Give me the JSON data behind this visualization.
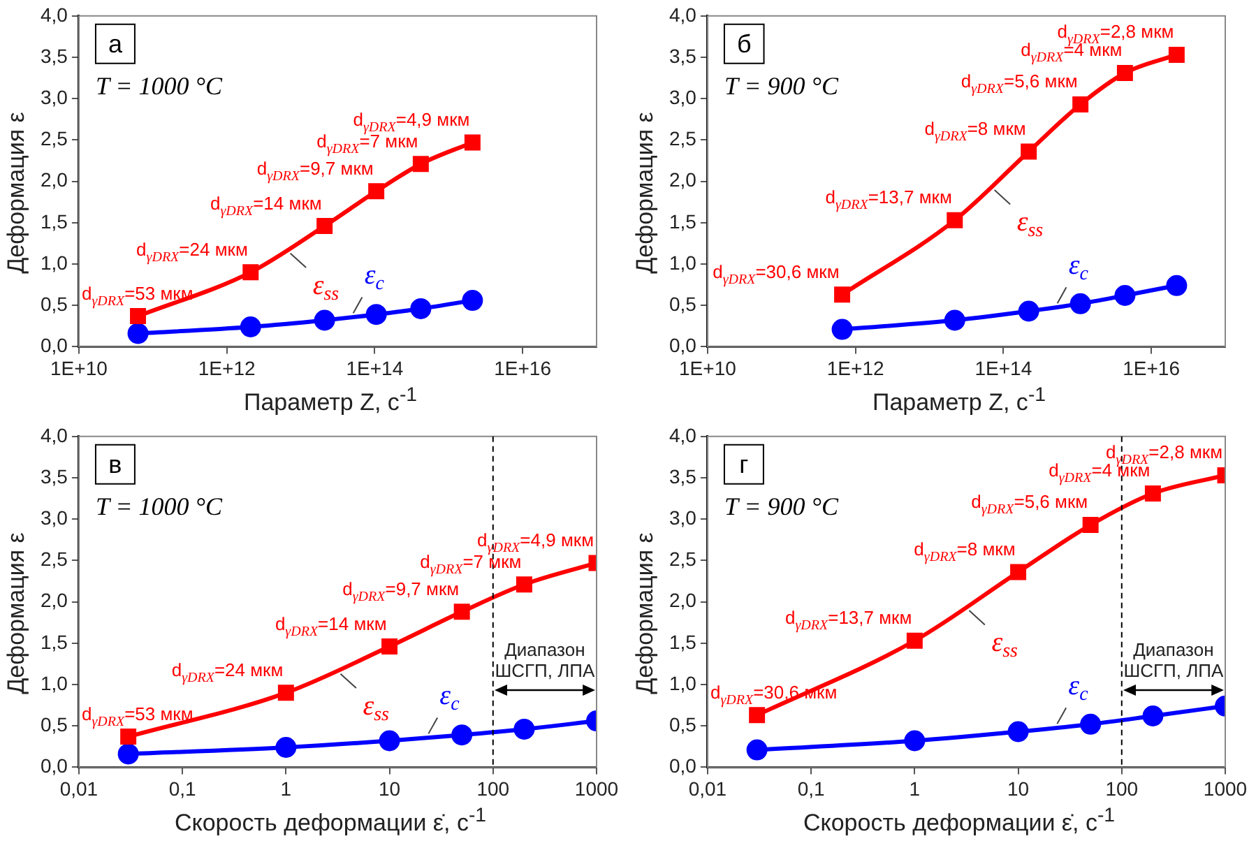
{
  "chart_data": [
    {
      "type": "line",
      "xlabel": "Параметр Z, с$^{-1}$",
      "ylabel": "Деформация ε",
      "log": "x",
      "grid": false,
      "legend": false,
      "xlim": [
        10000000000.0,
        1e+17
      ],
      "xticks": [
        {
          "value": 10000000000.0,
          "label": "1E+10"
        },
        {
          "value": 1000000000000.0,
          "label": "1E+12"
        },
        {
          "value": 100000000000000.0,
          "label": "1E+14"
        },
        {
          "value": 1e+16,
          "label": "1E+16"
        }
      ],
      "ylim": [
        0,
        4
      ],
      "yticks": [
        {
          "value": 0,
          "label": "0,0"
        },
        {
          "value": 0.5,
          "label": "0,5"
        },
        {
          "value": 1,
          "label": "1,0"
        },
        {
          "value": 1.5,
          "label": "1,5"
        },
        {
          "value": 2,
          "label": "2,0"
        },
        {
          "value": 2.5,
          "label": "2,5"
        },
        {
          "value": 3,
          "label": "3,0"
        },
        {
          "value": 3.5,
          "label": "3,5"
        },
        {
          "value": 4,
          "label": "4,0"
        }
      ],
      "x": [
        63000000000.0,
        2100000000000.0,
        21000000000000.0,
        105000000000000.0,
        420000000000000.0,
        2100000000000000.0
      ],
      "series": [
        {
          "name": "ε$_{ss}$",
          "color": "#ff0000",
          "marker": "square",
          "values": [
            0.37,
            0.9,
            1.46,
            1.88,
            2.21,
            2.47
          ]
        },
        {
          "name": "ε$_{c}$",
          "color": "#0000ff",
          "marker": "circle",
          "values": [
            0.16,
            0.24,
            0.32,
            0.39,
            0.46,
            0.56
          ]
        }
      ],
      "annotations": [
        "а",
        "T = 1000 °C",
        {
          "text": "d$_{γDRX}$=53 мкм",
          "x": 63000000000.0,
          "y": 0.37
        },
        {
          "text": "d$_{γDRX}$=24 мкм",
          "x": 2100000000000.0,
          "y": 0.9
        },
        {
          "text": "d$_{γDRX}$=14 мкм",
          "x": 21000000000000.0,
          "y": 1.46
        },
        {
          "text": "d$_{γDRX}$=9,7 мкм",
          "x": 105000000000000.0,
          "y": 1.88
        },
        {
          "text": "d$_{γDRX}$=7 мкм",
          "x": 420000000000000.0,
          "y": 2.21
        },
        {
          "text": "d$_{γDRX}$=4,9 мкм",
          "x": 2100000000000000.0,
          "y": 2.47
        }
      ]
    },
    {
      "type": "line",
      "xlabel": "Параметр Z, с$^{-1}$",
      "ylabel": "Деформация ε",
      "log": "x",
      "grid": false,
      "legend": false,
      "xlim": [
        10000000000.0,
        1e+17
      ],
      "xticks": [
        {
          "value": 10000000000.0,
          "label": "1E+10"
        },
        {
          "value": 1000000000000.0,
          "label": "1E+12"
        },
        {
          "value": 100000000000000.0,
          "label": "1E+14"
        },
        {
          "value": 1e+16,
          "label": "1E+16"
        }
      ],
      "ylim": [
        0,
        4
      ],
      "yticks": [
        {
          "value": 0,
          "label": "0,0"
        },
        {
          "value": 0.5,
          "label": "0,5"
        },
        {
          "value": 1,
          "label": "1,0"
        },
        {
          "value": 1.5,
          "label": "1,5"
        },
        {
          "value": 2,
          "label": "2,0"
        },
        {
          "value": 2.5,
          "label": "2,5"
        },
        {
          "value": 3,
          "label": "3,0"
        },
        {
          "value": 3.5,
          "label": "3,5"
        },
        {
          "value": 4,
          "label": "4,0"
        }
      ],
      "x": [
        660000000000.0,
        22000000000000.0,
        220000000000000.0,
        1100000000000000.0,
        4400000000000000.0,
        2.2e+16
      ],
      "series": [
        {
          "name": "ε$_{ss}$",
          "color": "#ff0000",
          "marker": "square",
          "values": [
            0.63,
            1.53,
            2.36,
            2.93,
            3.31,
            3.53
          ]
        },
        {
          "name": "ε$_{c}$",
          "color": "#0000ff",
          "marker": "circle",
          "values": [
            0.21,
            0.32,
            0.43,
            0.52,
            0.62,
            0.74
          ]
        }
      ],
      "annotations": [
        "б",
        "T = 900 °C",
        {
          "text": "d$_{γDRX}$=30,6 мкм",
          "x": 660000000000.0,
          "y": 0.63
        },
        {
          "text": "d$_{γDRX}$=13,7 мкм",
          "x": 22000000000000.0,
          "y": 1.53
        },
        {
          "text": "d$_{γDRX}$=8 мкм",
          "x": 220000000000000.0,
          "y": 2.36
        },
        {
          "text": "d$_{γDRX}$=5,6 мкм",
          "x": 1100000000000000.0,
          "y": 2.93
        },
        {
          "text": "d$_{γDRX}$=4 мкм",
          "x": 4400000000000000.0,
          "y": 3.31
        },
        {
          "text": "d$_{γDRX}$=2,8 мкм",
          "x": 2.2e+16,
          "y": 3.53
        }
      ]
    },
    {
      "type": "line",
      "xlabel": "Скорость деформации ε̇, с$^{-1}$",
      "ylabel": "Деформация ε",
      "log": "x",
      "grid": false,
      "legend": false,
      "xlim": [
        0.01,
        1000
      ],
      "xticks": [
        {
          "value": 0.01,
          "label": "0,01"
        },
        {
          "value": 0.1,
          "label": "0,1"
        },
        1,
        10,
        100,
        1000
      ],
      "ylim": [
        0,
        4
      ],
      "yticks": [
        {
          "value": 0,
          "label": "0,0"
        },
        {
          "value": 0.5,
          "label": "0,5"
        },
        {
          "value": 1,
          "label": "1,0"
        },
        {
          "value": 1.5,
          "label": "1,5"
        },
        {
          "value": 2,
          "label": "2,0"
        },
        {
          "value": 2.5,
          "label": "2,5"
        },
        {
          "value": 3,
          "label": "3,0"
        },
        {
          "value": 3.5,
          "label": "3,5"
        },
        {
          "value": 4,
          "label": "4,0"
        }
      ],
      "x": [
        0.03,
        1,
        10,
        50,
        200,
        1000
      ],
      "series": [
        {
          "name": "ε$_{ss}$",
          "color": "#ff0000",
          "marker": "square",
          "values": [
            0.37,
            0.9,
            1.46,
            1.88,
            2.21,
            2.47
          ]
        },
        {
          "name": "ε$_{c}$",
          "color": "#0000ff",
          "marker": "circle",
          "values": [
            0.16,
            0.24,
            0.32,
            0.39,
            0.46,
            0.56
          ]
        }
      ],
      "ref_lines": [
        {
          "axis": "x",
          "value": 100,
          "color": "#000000",
          "line_style": "dashed"
        }
      ],
      "annotations": [
        "в",
        "T = 1000 °C",
        "Диапазон ШСГП, ЛПА",
        {
          "text": "d$_{γDRX}$=53 мкм",
          "x": 0.03,
          "y": 0.37
        },
        {
          "text": "d$_{γDRX}$=24 мкм",
          "x": 1,
          "y": 0.9
        },
        {
          "text": "d$_{γDRX}$=14 мкм",
          "x": 10,
          "y": 1.46
        },
        {
          "text": "d$_{γDRX}$=9,7 мкм",
          "x": 50,
          "y": 1.88
        },
        {
          "text": "d$_{γDRX}$=7 мкм",
          "x": 200,
          "y": 2.21
        },
        {
          "text": "d$_{γDRX}$=4,9 мкм",
          "x": 1000,
          "y": 2.47
        }
      ]
    },
    {
      "type": "line",
      "xlabel": "Скорость деформации ε̇, с$^{-1}$",
      "ylabel": "Деформация ε",
      "log": "x",
      "grid": false,
      "legend": false,
      "xlim": [
        0.01,
        1000
      ],
      "xticks": [
        {
          "value": 0.01,
          "label": "0,01"
        },
        {
          "value": 0.1,
          "label": "0,1"
        },
        1,
        10,
        100,
        1000
      ],
      "ylim": [
        0,
        4
      ],
      "yticks": [
        {
          "value": 0,
          "label": "0,0"
        },
        {
          "value": 0.5,
          "label": "0,5"
        },
        {
          "value": 1,
          "label": "1,0"
        },
        {
          "value": 1.5,
          "label": "1,5"
        },
        {
          "value": 2,
          "label": "2,0"
        },
        {
          "value": 2.5,
          "label": "2,5"
        },
        {
          "value": 3,
          "label": "3,0"
        },
        {
          "value": 3.5,
          "label": "3,5"
        },
        {
          "value": 4,
          "label": "4,0"
        }
      ],
      "x": [
        0.03,
        1,
        10,
        50,
        200,
        1000
      ],
      "series": [
        {
          "name": "ε$_{ss}$",
          "color": "#ff0000",
          "marker": "square",
          "values": [
            0.63,
            1.53,
            2.36,
            2.93,
            3.31,
            3.53
          ]
        },
        {
          "name": "ε$_{c}$",
          "color": "#0000ff",
          "marker": "circle",
          "values": [
            0.21,
            0.32,
            0.43,
            0.52,
            0.62,
            0.74
          ]
        }
      ],
      "ref_lines": [
        {
          "axis": "x",
          "value": 100,
          "color": "#000000",
          "line_style": "dashed"
        }
      ],
      "annotations": [
        "г",
        "T = 900 °C",
        "Диапазон ШСГП, ЛПА",
        {
          "text": "d$_{γDRX}$=30,6 мкм",
          "x": 0.03,
          "y": 0.63
        },
        {
          "text": "d$_{γDRX}$=13,7 мкм",
          "x": 1,
          "y": 1.53
        },
        {
          "text": "d$_{γDRX}$=8 мкм",
          "x": 10,
          "y": 2.36
        },
        {
          "text": "d$_{γDRX}$=5,6 мкм",
          "x": 50,
          "y": 2.93
        },
        {
          "text": "d$_{γDRX}$=4 мкм",
          "x": 200,
          "y": 3.31
        },
        {
          "text": "d$_{γDRX}$=2,8 мкм",
          "x": 1000,
          "y": 3.53
        }
      ]
    }
  ]
}
